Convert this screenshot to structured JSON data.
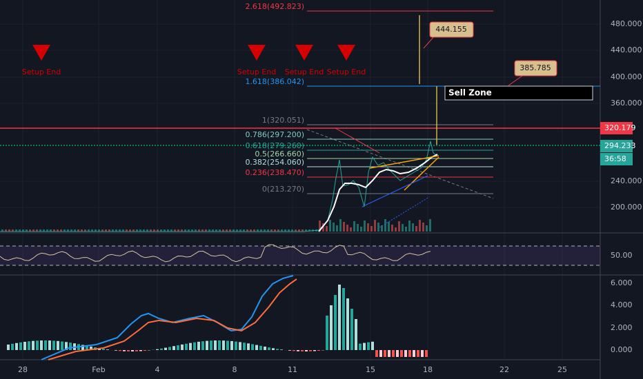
{
  "price_axis": {
    "labels": [
      "480.000",
      "440.000",
      "400.000",
      "360.000",
      "240.000",
      "200.000"
    ]
  },
  "price_badges": {
    "resistance": "320.179",
    "last_price": "294.233",
    "countdown": "36:58"
  },
  "fib_levels": [
    "2.618(492.823)",
    "1.618(386.042)",
    "1(320.051)",
    "0.786(297.200)",
    "0.618(279.260)",
    "0.5(266.660)",
    "0.382(254.060)",
    "0.236(238.470)",
    "0(213.270)"
  ],
  "callouts": [
    "444.155",
    "385.785"
  ],
  "sell_zone": "Sell Zone",
  "setup_markers": [
    "Setup End",
    "Setup End",
    "Setup End",
    "Setup End"
  ],
  "rsi_axis": {
    "labels": [
      "50.00"
    ]
  },
  "macd_axis": {
    "labels": [
      "6.000",
      "4.000",
      "2.000",
      "0.000"
    ]
  },
  "date_axis": {
    "labels": [
      "28",
      "Feb",
      "4",
      "8",
      "11",
      "15",
      "18",
      "22",
      "25"
    ]
  }
}
